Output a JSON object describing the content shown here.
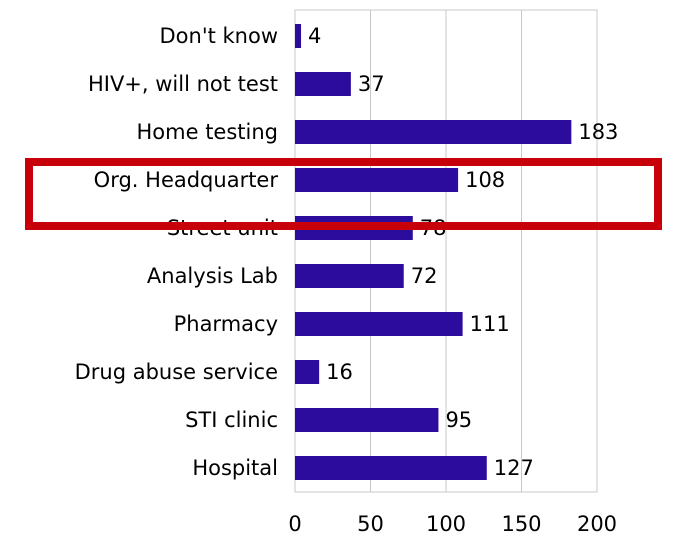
{
  "chart_data": {
    "type": "bar",
    "orientation": "horizontal",
    "categories": [
      "Don't know",
      "HIV+, will not test",
      "Home testing",
      "Org. Headquarter",
      "Street unit",
      "Analysis Lab",
      "Pharmacy",
      "Drug abuse service",
      "STI clinic",
      "Hospital"
    ],
    "values": [
      4,
      37,
      183,
      108,
      78,
      72,
      111,
      16,
      95,
      127
    ],
    "color": "#2b0c9c",
    "xlim": [
      0,
      200
    ],
    "xticks": [
      0,
      50,
      100,
      150,
      200
    ],
    "grid": true
  }
}
